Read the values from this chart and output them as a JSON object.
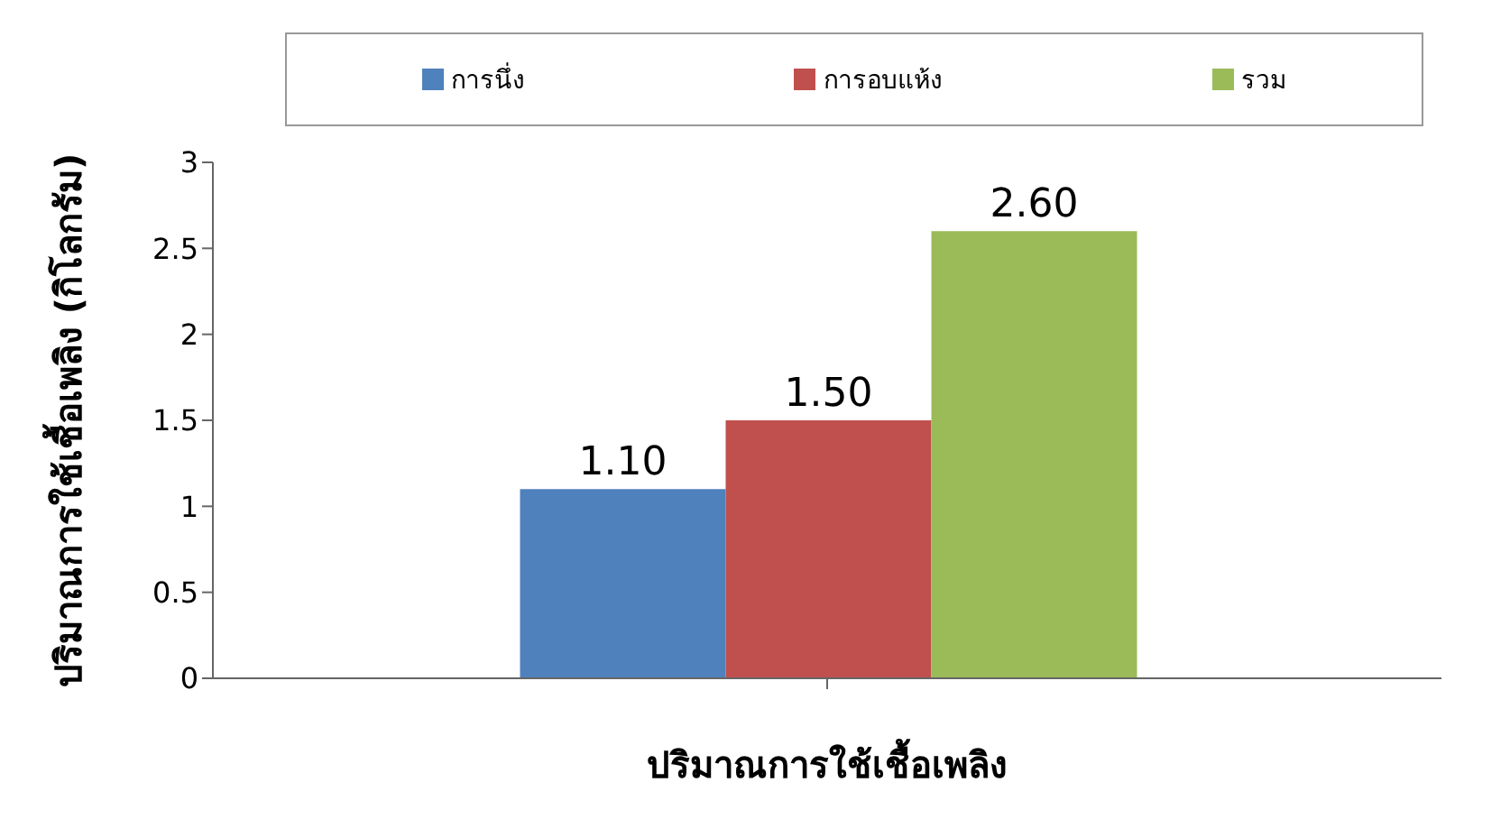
{
  "chart_data": {
    "type": "bar",
    "xlabel": "ปริมาณการใช้เชื้อเพลิง",
    "ylabel": "ปริมาณการใช้เชื้อเพลิง (กิโลกรัม)",
    "categories": [
      null
    ],
    "series": [
      {
        "name": "การนึ่ง",
        "color": "#4f81bd",
        "values": [
          1.1
        ],
        "value_labels": [
          "1.10"
        ]
      },
      {
        "name": "การอบแห้ง",
        "color": "#c0504d",
        "values": [
          1.5
        ],
        "value_labels": [
          "1.50"
        ]
      },
      {
        "name": "รวม",
        "color": "#9bbb59",
        "values": [
          2.6
        ],
        "value_labels": [
          "2.60"
        ]
      }
    ],
    "ylim": [
      0,
      3
    ],
    "yticks": [
      0,
      0.5,
      1,
      1.5,
      2,
      2.5,
      3
    ],
    "legend": "top",
    "grid": false
  }
}
